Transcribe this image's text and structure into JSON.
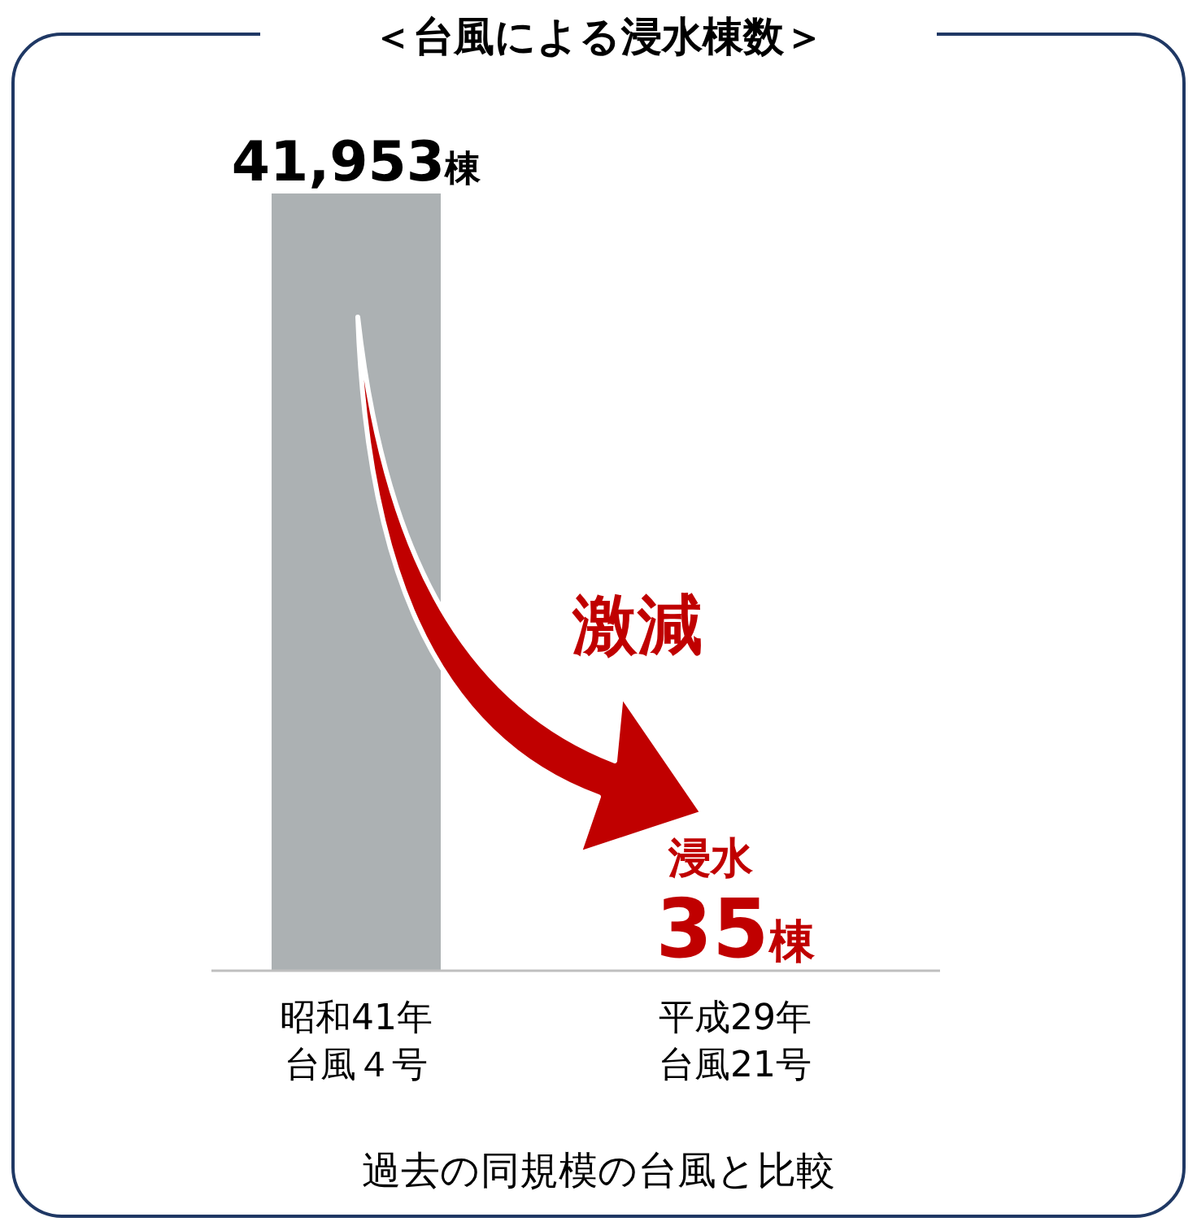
{
  "chart_data": {
    "type": "bar",
    "title": "＜台風による浸水棟数＞",
    "categories": [
      "昭和41年台風４号",
      "平成29年台風21号"
    ],
    "values": [
      41953,
      35
    ],
    "colors": [
      "#acb1b3",
      "#c00000"
    ],
    "ylim": [
      0,
      41953
    ],
    "tick_labels": "x",
    "value_labels": [
      "41,953棟",
      "35棟"
    ],
    "annotations": [
      "激減",
      "過去の同規模の台風と比較",
      {
        "text": "浸水",
        "x": "平成29年台風21号",
        "y": 35
      }
    ]
  }
}
